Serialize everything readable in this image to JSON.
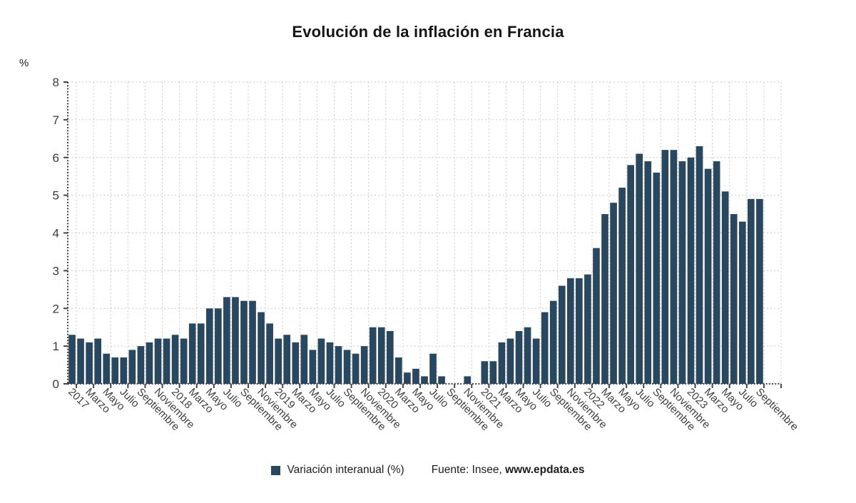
{
  "title": "Evolución de la inflación en Francia",
  "y_axis": {
    "unit": "%",
    "min": 0,
    "max": 8,
    "tick_step": 1,
    "tick_labels": [
      "0",
      "1",
      "2",
      "3",
      "4",
      "5",
      "6",
      "7",
      "8"
    ]
  },
  "x_axis": {
    "tick_labels": [
      "2017",
      "Marzo",
      "Mayo",
      "Julio",
      "Septiembre",
      "Noviembre",
      "2018",
      "Marzo",
      "Mayo",
      "Julio",
      "Septiembre",
      "Noviembre",
      "2019",
      "Marzo",
      "Mayo",
      "Julio",
      "Septiembre",
      "Noviembre",
      "2020",
      "Marzo",
      "Mayo",
      "Julio",
      "Septiembre",
      "Noviembre",
      "2021",
      "Marzo",
      "Mayo",
      "Julio",
      "Septiembre",
      "Noviembre",
      "2022",
      "Marzo",
      "Mayo",
      "Julio",
      "Septiembre",
      "Noviembre",
      "2023",
      "Marzo",
      "Mayo",
      "Julio",
      "Septiembre"
    ]
  },
  "legend": {
    "series_label": "Variación interanual (%)",
    "swatch_color": "#2a4760"
  },
  "source": {
    "prefix": "Fuente: Insee, ",
    "site": "www.epdata.es"
  },
  "colors": {
    "bar": "#2a4760",
    "grid": "#cbcbcb",
    "axis": "#454545",
    "tick_text": "#3a3a3a"
  },
  "chart_data": {
    "type": "bar",
    "title": "Evolución de la inflación en Francia",
    "xlabel": "",
    "ylabel": "%",
    "ylim": [
      0,
      8
    ],
    "y_ticks": [
      0,
      1,
      2,
      3,
      4,
      5,
      6,
      7,
      8
    ],
    "grid": true,
    "legend_position": "bottom",
    "months": [
      "2017-01",
      "2017-02",
      "2017-03",
      "2017-04",
      "2017-05",
      "2017-06",
      "2017-07",
      "2017-08",
      "2017-09",
      "2017-10",
      "2017-11",
      "2017-12",
      "2018-01",
      "2018-02",
      "2018-03",
      "2018-04",
      "2018-05",
      "2018-06",
      "2018-07",
      "2018-08",
      "2018-09",
      "2018-10",
      "2018-11",
      "2018-12",
      "2019-01",
      "2019-02",
      "2019-03",
      "2019-04",
      "2019-05",
      "2019-06",
      "2019-07",
      "2019-08",
      "2019-09",
      "2019-10",
      "2019-11",
      "2019-12",
      "2020-01",
      "2020-02",
      "2020-03",
      "2020-04",
      "2020-05",
      "2020-06",
      "2020-07",
      "2020-08",
      "2020-09",
      "2020-10",
      "2020-11",
      "2020-12",
      "2021-01",
      "2021-02",
      "2021-03",
      "2021-04",
      "2021-05",
      "2021-06",
      "2021-07",
      "2021-08",
      "2021-09",
      "2021-10",
      "2021-11",
      "2021-12",
      "2022-01",
      "2022-02",
      "2022-03",
      "2022-04",
      "2022-05",
      "2022-06",
      "2022-07",
      "2022-08",
      "2022-09",
      "2022-10",
      "2022-11",
      "2022-12",
      "2023-01",
      "2023-02",
      "2023-03",
      "2023-04",
      "2023-05",
      "2023-06",
      "2023-07",
      "2023-08",
      "2023-09"
    ],
    "series": [
      {
        "name": "Variación interanual (%)",
        "values": [
          1.3,
          1.2,
          1.1,
          1.2,
          0.8,
          0.7,
          0.7,
          0.9,
          1.0,
          1.1,
          1.2,
          1.2,
          1.3,
          1.2,
          1.6,
          1.6,
          2.0,
          2.0,
          2.3,
          2.3,
          2.2,
          2.2,
          1.9,
          1.6,
          1.2,
          1.3,
          1.1,
          1.3,
          0.9,
          1.2,
          1.1,
          1.0,
          0.9,
          0.8,
          1.0,
          1.5,
          1.5,
          1.4,
          0.7,
          0.3,
          0.4,
          0.2,
          0.8,
          0.2,
          0.0,
          0.0,
          0.2,
          0.0,
          0.6,
          0.6,
          1.1,
          1.2,
          1.4,
          1.5,
          1.2,
          1.9,
          2.2,
          2.6,
          2.8,
          2.8,
          2.9,
          3.6,
          4.5,
          4.8,
          5.2,
          5.8,
          6.1,
          5.9,
          5.6,
          6.2,
          6.2,
          5.9,
          6.0,
          6.3,
          5.7,
          5.9,
          5.1,
          4.5,
          4.3,
          4.9,
          4.9
        ]
      }
    ],
    "x_tick_labels": [
      "2017",
      "Marzo",
      "Mayo",
      "Julio",
      "Septiembre",
      "Noviembre",
      "2018",
      "Marzo",
      "Mayo",
      "Julio",
      "Septiembre",
      "Noviembre",
      "2019",
      "Marzo",
      "Mayo",
      "Julio",
      "Septiembre",
      "Noviembre",
      "2020",
      "Marzo",
      "Mayo",
      "Julio",
      "Septiembre",
      "Noviembre",
      "2021",
      "Marzo",
      "Mayo",
      "Julio",
      "Septiembre",
      "Noviembre",
      "2022",
      "Marzo",
      "Mayo",
      "Julio",
      "Septiembre",
      "Noviembre",
      "2023",
      "Marzo",
      "Mayo",
      "Julio",
      "Septiembre"
    ]
  }
}
